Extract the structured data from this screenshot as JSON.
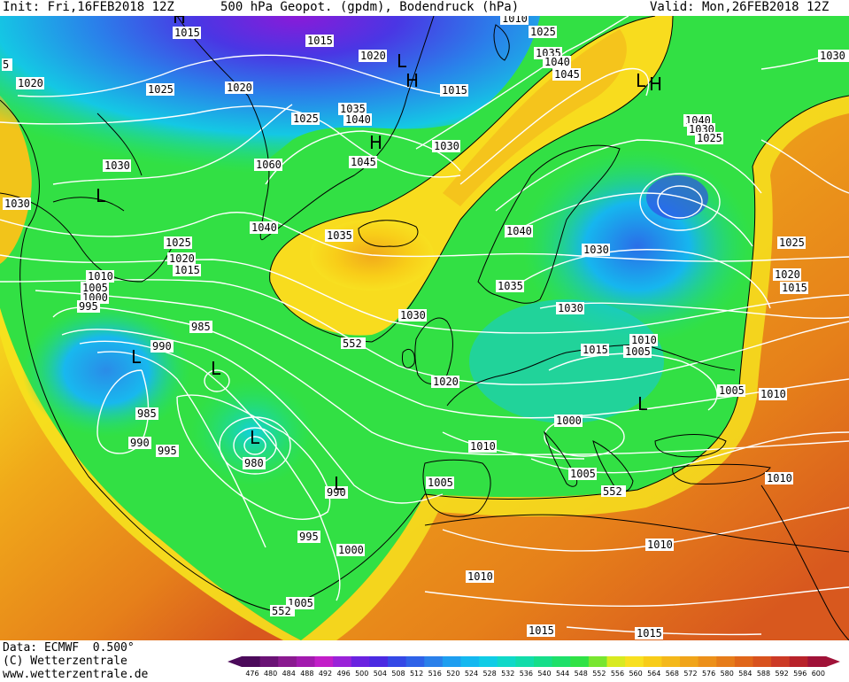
{
  "header": {
    "init": "Init: Fri,16FEB2018 12Z",
    "title": "500 hPa Geopot. (gpdm), Bodendruck (hPa)",
    "valid": "Valid: Mon,26FEB2018 12Z"
  },
  "footer": {
    "data_line": "Data: ECMWF  0.500°",
    "copyright": "(C) Wetterzentrale",
    "url": "www.wetterzentrale.de"
  },
  "colorbar": {
    "ticks": [
      "476",
      "480",
      "484",
      "488",
      "492",
      "496",
      "500",
      "504",
      "508",
      "512",
      "516",
      "520",
      "524",
      "528",
      "532",
      "536",
      "540",
      "544",
      "548",
      "552",
      "556",
      "560",
      "564",
      "568",
      "572",
      "576",
      "580",
      "584",
      "588",
      "592",
      "596",
      "600"
    ],
    "colors": [
      "#4b0a5a",
      "#6a1275",
      "#8a1a90",
      "#a21aae",
      "#c21ec8",
      "#9a22d8",
      "#6a22e0",
      "#4a2ae2",
      "#3448e6",
      "#2e62e8",
      "#2a80ea",
      "#1e9ef0",
      "#14b8f0",
      "#10cce6",
      "#10d8c8",
      "#12dcaa",
      "#16de8a",
      "#1ee06a",
      "#30e246",
      "#78e630",
      "#d8ea20",
      "#f8e020",
      "#f8cc18",
      "#f4b81a",
      "#f0a41a",
      "#ec901a",
      "#e67c1a",
      "#e0661a",
      "#d8521e",
      "#cc3a26",
      "#b8222a",
      "#a01238"
    ]
  },
  "pressure_labels": [
    {
      "text": "1015",
      "id": "a"
    },
    {
      "text": "1015",
      "id": "b"
    },
    {
      "text": "1020",
      "id": "c"
    },
    {
      "text": "1010",
      "id": "d"
    },
    {
      "text": "1025",
      "id": "e"
    },
    {
      "text": "1035",
      "id": "f"
    },
    {
      "text": "1040",
      "id": "g"
    },
    {
      "text": "1045",
      "id": "h"
    },
    {
      "text": "1030",
      "id": "i"
    },
    {
      "text": "1020",
      "id": "j"
    },
    {
      "text": "1025",
      "id": "k"
    },
    {
      "text": "1020",
      "id": "l"
    },
    {
      "text": "1015",
      "id": "m"
    },
    {
      "text": "1035",
      "id": "n"
    },
    {
      "text": "1040",
      "id": "o"
    },
    {
      "text": "1025",
      "id": "p"
    },
    {
      "text": "1030",
      "id": "q"
    },
    {
      "text": "1060",
      "id": "r"
    },
    {
      "text": "1045",
      "id": "s"
    },
    {
      "text": "1030",
      "id": "t"
    },
    {
      "text": "1040",
      "id": "u"
    },
    {
      "text": "1030",
      "id": "v"
    },
    {
      "text": "1035",
      "id": "w"
    },
    {
      "text": "1040",
      "id": "x"
    },
    {
      "text": "1030",
      "id": "y"
    },
    {
      "text": "1025",
      "id": "z"
    },
    {
      "text": "1020",
      "id": "aa"
    },
    {
      "text": "1015",
      "id": "ab"
    },
    {
      "text": "1010",
      "id": "ac"
    },
    {
      "text": "1005",
      "id": "ad"
    },
    {
      "text": "1000",
      "id": "ae"
    },
    {
      "text": "995",
      "id": "af"
    },
    {
      "text": "990",
      "id": "ag"
    },
    {
      "text": "985",
      "id": "ah"
    },
    {
      "text": "985",
      "id": "ai"
    },
    {
      "text": "990",
      "id": "aj"
    },
    {
      "text": "995",
      "id": "ak"
    },
    {
      "text": "980",
      "id": "al"
    },
    {
      "text": "990",
      "id": "am"
    },
    {
      "text": "995",
      "id": "an"
    },
    {
      "text": "1000",
      "id": "ao"
    },
    {
      "text": "1005",
      "id": "ap"
    },
    {
      "text": "1035",
      "id": "aq"
    },
    {
      "text": "1030",
      "id": "ar"
    },
    {
      "text": "1020",
      "id": "as"
    },
    {
      "text": "1010",
      "id": "at"
    },
    {
      "text": "1005",
      "id": "au"
    },
    {
      "text": "1040",
      "id": "av"
    },
    {
      "text": "1030",
      "id": "aw"
    },
    {
      "text": "1035",
      "id": "ax"
    },
    {
      "text": "1025",
      "id": "ay"
    },
    {
      "text": "1015",
      "id": "az"
    },
    {
      "text": "1010",
      "id": "ba"
    },
    {
      "text": "1005",
      "id": "bb"
    },
    {
      "text": "1000",
      "id": "bc"
    },
    {
      "text": "1005",
      "id": "bd"
    },
    {
      "text": "1045",
      "id": "be"
    },
    {
      "text": "1040",
      "id": "bf"
    },
    {
      "text": "1035",
      "id": "bg"
    },
    {
      "text": "1025",
      "id": "bh"
    },
    {
      "text": "1030",
      "id": "bi"
    },
    {
      "text": "1025",
      "id": "bj"
    },
    {
      "text": "1020",
      "id": "bk"
    },
    {
      "text": "1015",
      "id": "bl"
    },
    {
      "text": "1005",
      "id": "bm"
    },
    {
      "text": "1010",
      "id": "bn"
    },
    {
      "text": "1010",
      "id": "bo"
    },
    {
      "text": "1010",
      "id": "bp"
    },
    {
      "text": "1015",
      "id": "bq"
    },
    {
      "text": "1015",
      "id": "br"
    },
    {
      "text": "1010",
      "id": "bs"
    },
    {
      "text": "1025",
      "id": "bt"
    },
    {
      "text": "1040",
      "id": "bu"
    },
    {
      "text": "1045",
      "id": "bv"
    },
    {
      "text": "5",
      "id": "bw"
    },
    {
      "text": "1030",
      "id": "bx"
    }
  ],
  "geopot_labels": [
    {
      "text": "552",
      "id": "g1"
    },
    {
      "text": "552",
      "id": "g2"
    },
    {
      "text": "552",
      "id": "g3"
    }
  ],
  "centers": [
    {
      "text": "L",
      "id": "c1"
    },
    {
      "text": "L",
      "id": "c2"
    },
    {
      "text": "L",
      "id": "c3"
    },
    {
      "text": "L",
      "id": "c4"
    },
    {
      "text": "L",
      "id": "c5"
    },
    {
      "text": "L",
      "id": "c6"
    },
    {
      "text": "L",
      "id": "c7"
    },
    {
      "text": "H",
      "id": "c8"
    },
    {
      "text": "L",
      "id": "c9"
    },
    {
      "text": "H",
      "id": "c10"
    },
    {
      "text": "H",
      "id": "c11"
    },
    {
      "text": "H",
      "id": "c12"
    }
  ]
}
